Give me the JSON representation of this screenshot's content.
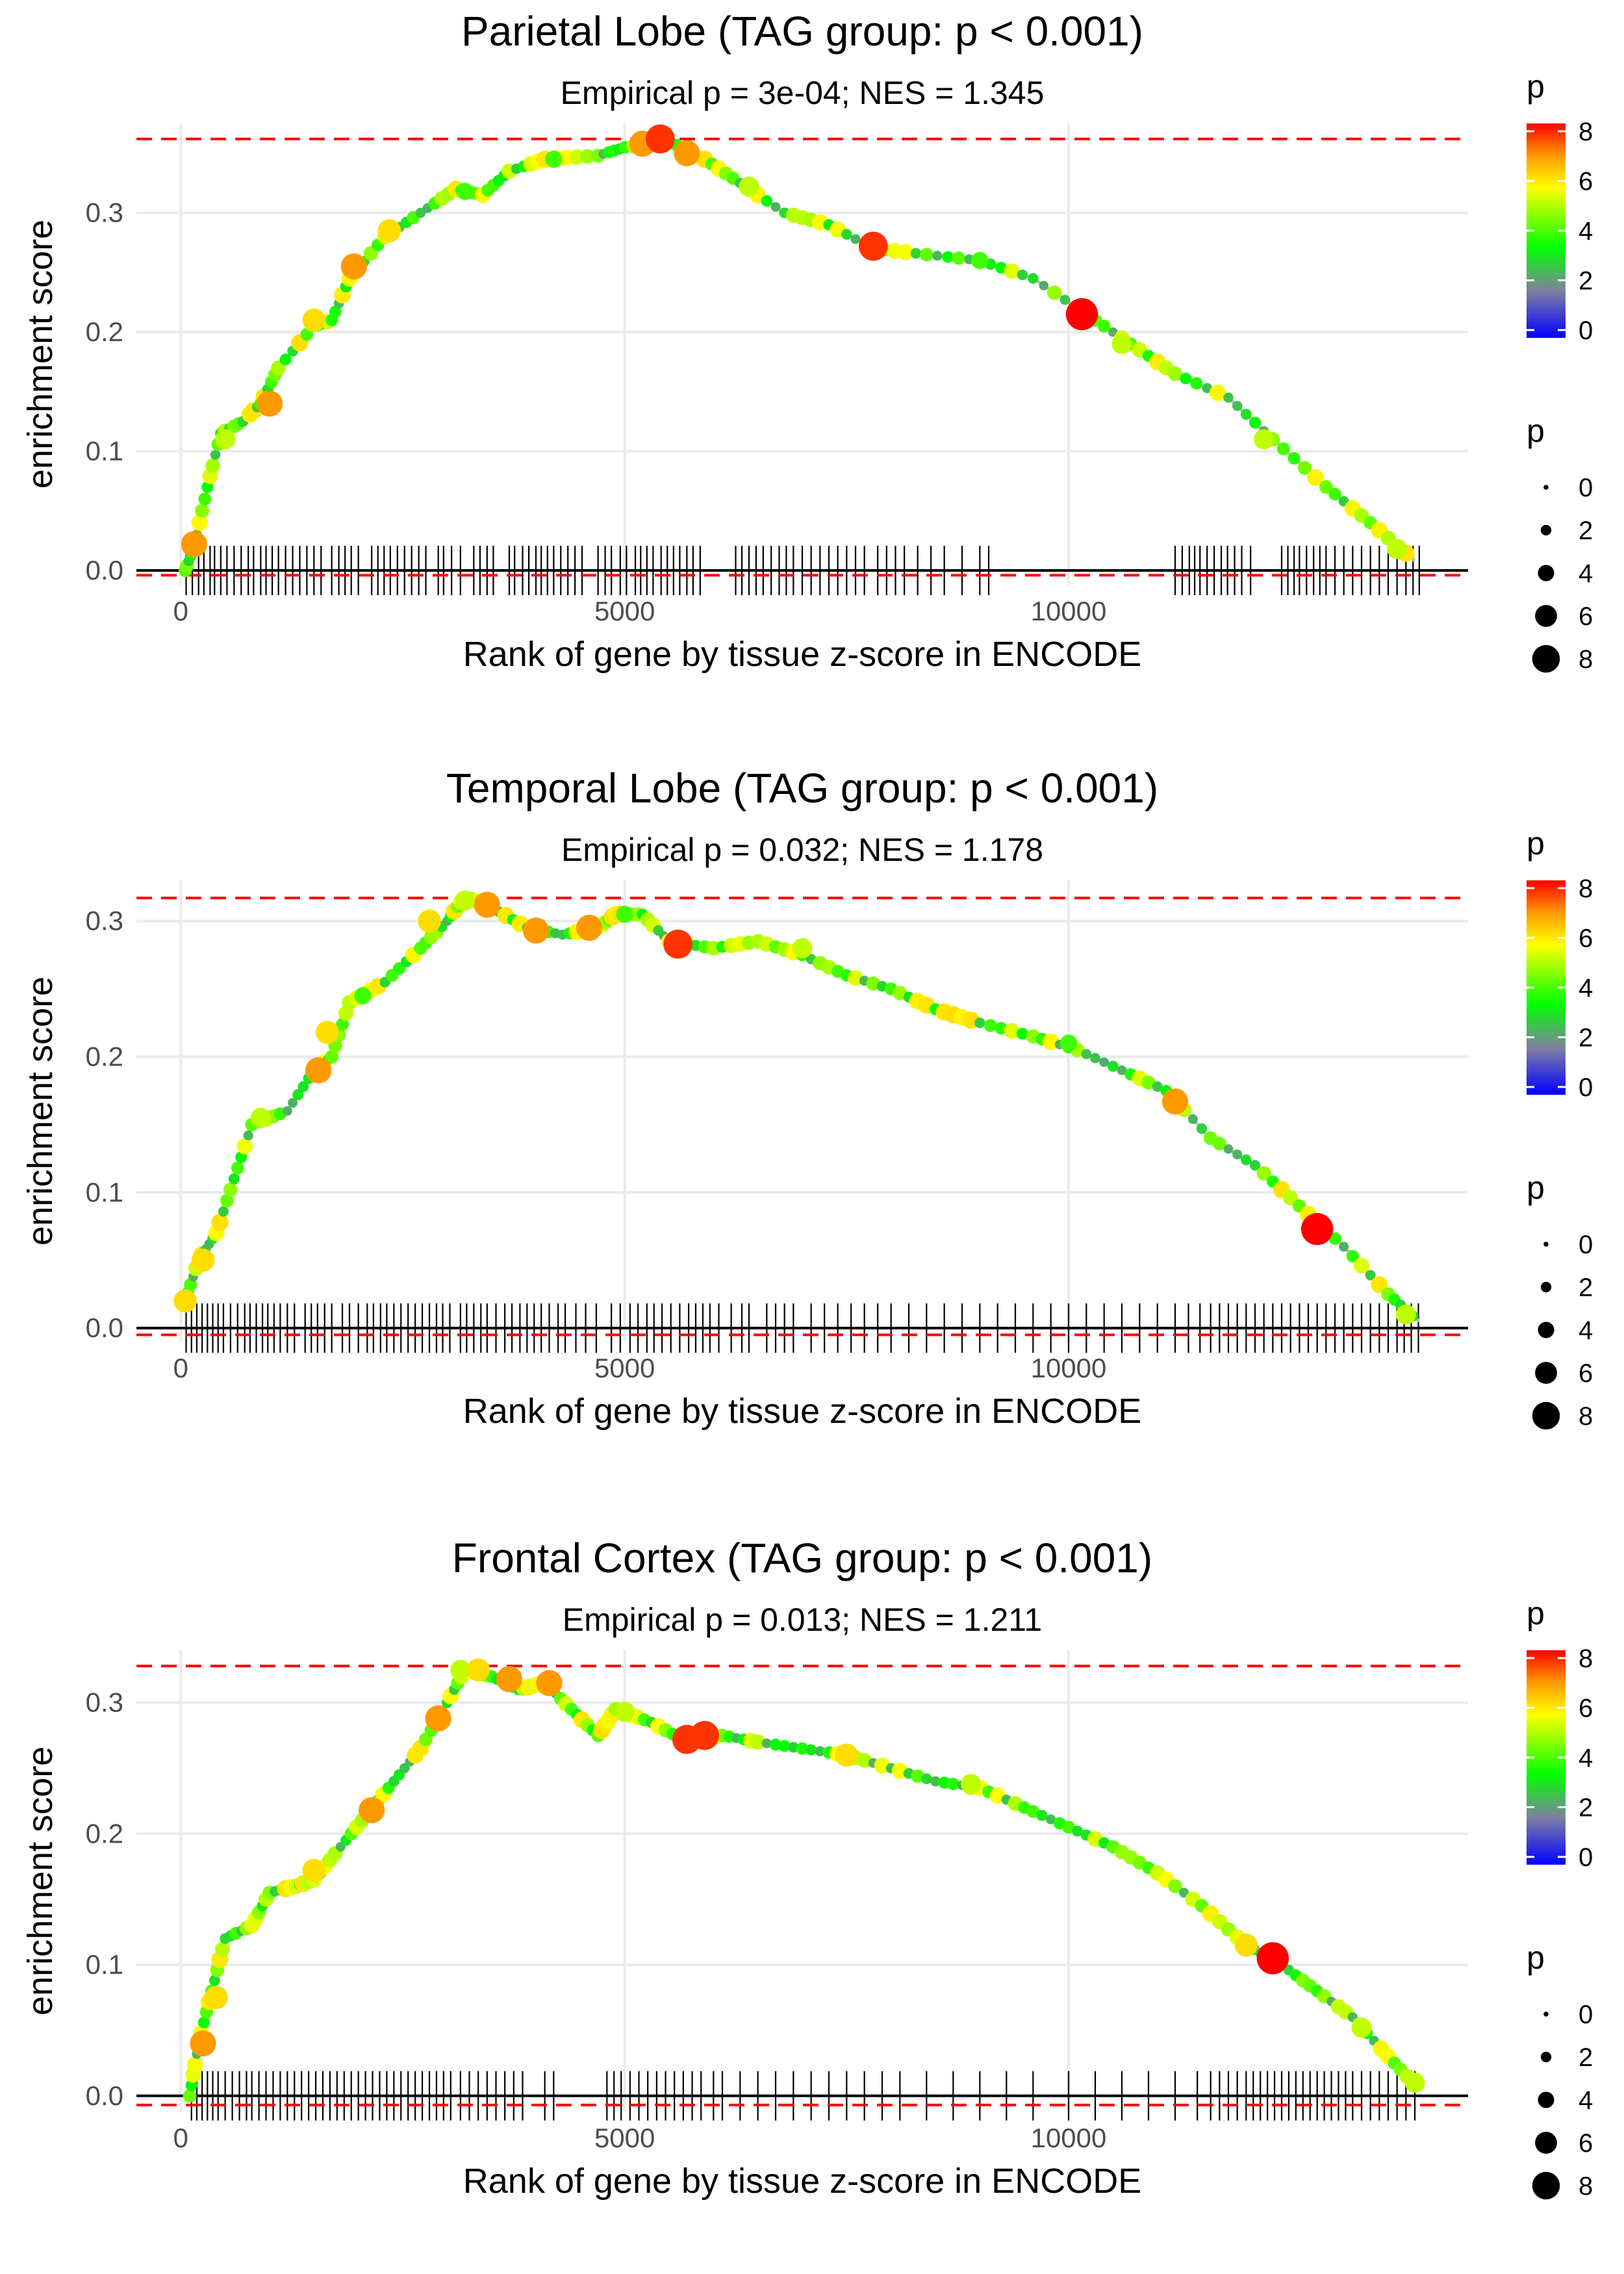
{
  "chart_data": [
    {
      "type": "line",
      "title": "Parietal Lobe (TAG group: p < 0.001)",
      "subtitle": "Empirical p = 3e-04; NES = 1.345",
      "xlabel": "Rank of gene by tissue z-score in ENCODE",
      "ylabel": "enrichment score",
      "xlim": [
        -500,
        14500
      ],
      "ylim": [
        -0.012,
        0.375
      ],
      "x_ticks": [
        0,
        5000,
        10000
      ],
      "x_tick_labels": [
        "0",
        "5000",
        "10000"
      ],
      "y_ticks": [
        0.0,
        0.1,
        0.2,
        0.3
      ],
      "y_tick_labels": [
        "0.0",
        "0.1",
        "0.2",
        "0.3"
      ],
      "max_es": 0.362,
      "min_es": -0.004,
      "curve": [
        [
          50,
          0
        ],
        [
          150,
          0.02
        ],
        [
          300,
          0.07
        ],
        [
          450,
          0.115
        ],
        [
          700,
          0.125
        ],
        [
          900,
          0.14
        ],
        [
          1100,
          0.17
        ],
        [
          1500,
          0.205
        ],
        [
          1700,
          0.21
        ],
        [
          1900,
          0.245
        ],
        [
          2300,
          0.28
        ],
        [
          2700,
          0.3
        ],
        [
          3100,
          0.32
        ],
        [
          3400,
          0.315
        ],
        [
          3700,
          0.335
        ],
        [
          4100,
          0.345
        ],
        [
          4700,
          0.348
        ],
        [
          5000,
          0.355
        ],
        [
          5500,
          0.36
        ],
        [
          5900,
          0.345
        ],
        [
          6300,
          0.325
        ],
        [
          6800,
          0.3
        ],
        [
          7300,
          0.29
        ],
        [
          7800,
          0.27
        ],
        [
          8400,
          0.265
        ],
        [
          9000,
          0.26
        ],
        [
          9600,
          0.245
        ],
        [
          10200,
          0.215
        ],
        [
          10700,
          0.19
        ],
        [
          11200,
          0.165
        ],
        [
          11800,
          0.145
        ],
        [
          12300,
          0.11
        ],
        [
          12900,
          0.07
        ],
        [
          13400,
          0.04
        ],
        [
          13900,
          0.008
        ]
      ],
      "markers": [
        {
          "x": 150,
          "y": 0.022,
          "p": 7
        },
        {
          "x": 500,
          "y": 0.11,
          "p": 5
        },
        {
          "x": 1000,
          "y": 0.14,
          "p": 7
        },
        {
          "x": 1500,
          "y": 0.21,
          "p": 6
        },
        {
          "x": 1950,
          "y": 0.255,
          "p": 7
        },
        {
          "x": 2350,
          "y": 0.285,
          "p": 6
        },
        {
          "x": 3200,
          "y": 0.318,
          "p": 4
        },
        {
          "x": 4200,
          "y": 0.345,
          "p": 4
        },
        {
          "x": 5200,
          "y": 0.358,
          "p": 7
        },
        {
          "x": 5400,
          "y": 0.362,
          "p": 8
        },
        {
          "x": 5700,
          "y": 0.35,
          "p": 7
        },
        {
          "x": 6400,
          "y": 0.322,
          "p": 5
        },
        {
          "x": 7800,
          "y": 0.272,
          "p": 8
        },
        {
          "x": 9000,
          "y": 0.26,
          "p": 4
        },
        {
          "x": 10150,
          "y": 0.215,
          "p": 9
        },
        {
          "x": 10600,
          "y": 0.19,
          "p": 5
        },
        {
          "x": 12200,
          "y": 0.11,
          "p": 5
        },
        {
          "x": 13700,
          "y": 0.018,
          "p": 5
        }
      ],
      "hits": [
        60,
        130,
        200,
        260,
        330,
        380,
        450,
        520,
        600,
        680,
        760,
        820,
        900,
        960,
        1030,
        1100,
        1180,
        1260,
        1340,
        1420,
        1500,
        1580,
        1700,
        1780,
        1850,
        1920,
        2000,
        2150,
        2220,
        2290,
        2360,
        2440,
        2520,
        2600,
        2680,
        2760,
        2900,
        2960,
        3050,
        3150,
        3300,
        3370,
        3450,
        3520,
        3700,
        3760,
        3850,
        3920,
        4000,
        4060,
        4130,
        4200,
        4280,
        4360,
        4440,
        4520,
        4700,
        4780,
        4850,
        4950,
        5020,
        5120,
        5180,
        5250,
        5320,
        5410,
        5480,
        5550,
        5620,
        5700,
        5770,
        5850,
        6250,
        6320,
        6400,
        6480,
        6560,
        6650,
        6740,
        6820,
        6900,
        7000,
        7100,
        7200,
        7300,
        7400,
        7500,
        7600,
        7700,
        7850,
        7950,
        8050,
        8150,
        8300,
        8450,
        8600,
        8800,
        9000,
        9100,
        11200,
        11280,
        11360,
        11420,
        11480,
        11560,
        11640,
        11720,
        11790,
        11870,
        11950,
        12050,
        12400,
        12470,
        12540,
        12600,
        12680,
        12760,
        12830,
        12900,
        13000,
        13100,
        13200,
        13300,
        13400,
        13500,
        13600,
        13700,
        13800,
        13880,
        13950
      ],
      "legend_color": {
        "title": "p",
        "labels": [
          "0",
          "2",
          "4",
          "6",
          "8"
        ]
      },
      "legend_size": {
        "title": "p",
        "labels": [
          "0",
          "2",
          "4",
          "6",
          "8"
        ]
      }
    },
    {
      "type": "line",
      "title": "Temporal Lobe (TAG group: p < 0.001)",
      "subtitle": "Empirical p = 0.032; NES = 1.178",
      "xlabel": "Rank of gene by tissue z-score in ENCODE",
      "ylabel": "enrichment score",
      "xlim": [
        -500,
        14500
      ],
      "ylim": [
        -0.01,
        0.33
      ],
      "x_ticks": [
        0,
        5000,
        10000
      ],
      "x_tick_labels": [
        "0",
        "5000",
        "10000"
      ],
      "y_ticks": [
        0.0,
        0.1,
        0.2,
        0.3
      ],
      "y_tick_labels": [
        "0.0",
        "0.1",
        "0.2",
        "0.3"
      ],
      "max_es": 0.317,
      "min_es": -0.005,
      "curve": [
        [
          50,
          0.02
        ],
        [
          200,
          0.05
        ],
        [
          400,
          0.07
        ],
        [
          600,
          0.11
        ],
        [
          800,
          0.15
        ],
        [
          1200,
          0.16
        ],
        [
          1500,
          0.19
        ],
        [
          1700,
          0.2
        ],
        [
          1900,
          0.24
        ],
        [
          2300,
          0.255
        ],
        [
          2700,
          0.28
        ],
        [
          3000,
          0.3
        ],
        [
          3200,
          0.318
        ],
        [
          3500,
          0.31
        ],
        [
          3900,
          0.295
        ],
        [
          4300,
          0.29
        ],
        [
          4700,
          0.295
        ],
        [
          4900,
          0.305
        ],
        [
          5200,
          0.305
        ],
        [
          5500,
          0.285
        ],
        [
          6000,
          0.28
        ],
        [
          6500,
          0.285
        ],
        [
          7000,
          0.275
        ],
        [
          7500,
          0.26
        ],
        [
          8000,
          0.25
        ],
        [
          8500,
          0.235
        ],
        [
          9000,
          0.225
        ],
        [
          9600,
          0.215
        ],
        [
          10100,
          0.205
        ],
        [
          10600,
          0.19
        ],
        [
          11100,
          0.175
        ],
        [
          11600,
          0.14
        ],
        [
          12100,
          0.12
        ],
        [
          12600,
          0.09
        ],
        [
          13100,
          0.06
        ],
        [
          13600,
          0.025
        ],
        [
          13950,
          0.005
        ]
      ],
      "markers": [
        {
          "x": 50,
          "y": 0.02,
          "p": 6
        },
        {
          "x": 250,
          "y": 0.05,
          "p": 6
        },
        {
          "x": 900,
          "y": 0.155,
          "p": 5
        },
        {
          "x": 1550,
          "y": 0.19,
          "p": 7
        },
        {
          "x": 1650,
          "y": 0.218,
          "p": 6
        },
        {
          "x": 2050,
          "y": 0.245,
          "p": 4
        },
        {
          "x": 2800,
          "y": 0.3,
          "p": 6
        },
        {
          "x": 3200,
          "y": 0.315,
          "p": 5
        },
        {
          "x": 3450,
          "y": 0.312,
          "p": 7
        },
        {
          "x": 4000,
          "y": 0.293,
          "p": 7
        },
        {
          "x": 4600,
          "y": 0.295,
          "p": 7
        },
        {
          "x": 5000,
          "y": 0.305,
          "p": 4
        },
        {
          "x": 5600,
          "y": 0.283,
          "p": 8
        },
        {
          "x": 7000,
          "y": 0.28,
          "p": 5
        },
        {
          "x": 10000,
          "y": 0.21,
          "p": 4
        },
        {
          "x": 11200,
          "y": 0.167,
          "p": 7
        },
        {
          "x": 12800,
          "y": 0.073,
          "p": 9
        },
        {
          "x": 13800,
          "y": 0.01,
          "p": 5
        }
      ],
      "hits": [
        60,
        120,
        180,
        240,
        300,
        360,
        420,
        480,
        560,
        640,
        720,
        780,
        850,
        920,
        980,
        1050,
        1120,
        1200,
        1280,
        1400,
        1470,
        1540,
        1620,
        1700,
        1820,
        1900,
        2000,
        2100,
        2170,
        2250,
        2320,
        2400,
        2480,
        2560,
        2640,
        2720,
        2800,
        2880,
        2950,
        3030,
        3150,
        3220,
        3300,
        3380,
        3450,
        3550,
        3650,
        3730,
        3820,
        3900,
        3980,
        4060,
        4150,
        4250,
        4330,
        4450,
        4560,
        4680,
        4850,
        4950,
        5060,
        5150,
        5250,
        5330,
        5420,
        5520,
        5620,
        5720,
        5800,
        5880,
        5960,
        6060,
        6200,
        6320,
        6400,
        6600,
        6700,
        6800,
        6900,
        7100,
        7250,
        7400,
        7550,
        7700,
        7850,
        8000,
        8200,
        8400,
        8600,
        8800,
        9000,
        9200,
        9400,
        9600,
        9800,
        10000,
        10200,
        10400,
        10600,
        10800,
        11000,
        11200,
        11350,
        11480,
        11600,
        11700,
        11800,
        11900,
        12000,
        12100,
        12200,
        12300,
        12400,
        12500,
        12600,
        12700,
        12800,
        12900,
        13000,
        13100,
        13200,
        13300,
        13400,
        13500,
        13600,
        13700,
        13780,
        13860,
        13940
      ],
      "legend_color": {
        "title": "p",
        "labels": [
          "0",
          "2",
          "4",
          "6",
          "8"
        ]
      },
      "legend_size": {
        "title": "p",
        "labels": [
          "0",
          "2",
          "4",
          "6",
          "8"
        ]
      }
    },
    {
      "type": "line",
      "title": "Frontal Cortex (TAG group: p < 0.001)",
      "subtitle": "Empirical p = 0.013; NES = 1.211",
      "xlabel": "Rank of gene by tissue z-score in ENCODE",
      "ylabel": "enrichment score",
      "xlim": [
        -500,
        14500
      ],
      "ylim": [
        -0.012,
        0.34
      ],
      "x_ticks": [
        0,
        5000,
        10000
      ],
      "x_tick_labels": [
        "0",
        "5000",
        "10000"
      ],
      "y_ticks": [
        0.0,
        0.1,
        0.2,
        0.3
      ],
      "y_tick_labels": [
        "0.0",
        "0.1",
        "0.2",
        "0.3"
      ],
      "max_es": 0.328,
      "min_es": -0.007,
      "curve": [
        [
          100,
          0
        ],
        [
          200,
          0.04
        ],
        [
          350,
          0.08
        ],
        [
          500,
          0.12
        ],
        [
          800,
          0.13
        ],
        [
          1000,
          0.155
        ],
        [
          1300,
          0.16
        ],
        [
          1500,
          0.165
        ],
        [
          1800,
          0.19
        ],
        [
          2100,
          0.215
        ],
        [
          2400,
          0.24
        ],
        [
          2700,
          0.265
        ],
        [
          3000,
          0.3
        ],
        [
          3200,
          0.325
        ],
        [
          3500,
          0.32
        ],
        [
          3800,
          0.31
        ],
        [
          4100,
          0.315
        ],
        [
          4400,
          0.295
        ],
        [
          4700,
          0.275
        ],
        [
          4900,
          0.295
        ],
        [
          5300,
          0.285
        ],
        [
          5700,
          0.27
        ],
        [
          6100,
          0.275
        ],
        [
          6500,
          0.27
        ],
        [
          7000,
          0.265
        ],
        [
          7500,
          0.26
        ],
        [
          8000,
          0.25
        ],
        [
          8500,
          0.24
        ],
        [
          9000,
          0.235
        ],
        [
          9500,
          0.22
        ],
        [
          10000,
          0.205
        ],
        [
          10500,
          0.19
        ],
        [
          11000,
          0.17
        ],
        [
          11500,
          0.145
        ],
        [
          12000,
          0.115
        ],
        [
          12400,
          0.1
        ],
        [
          12800,
          0.08
        ],
        [
          13200,
          0.06
        ],
        [
          13600,
          0.03
        ],
        [
          13950,
          0.005
        ]
      ],
      "markers": [
        {
          "x": 250,
          "y": 0.04,
          "p": 7
        },
        {
          "x": 400,
          "y": 0.075,
          "p": 6
        },
        {
          "x": 1500,
          "y": 0.172,
          "p": 6
        },
        {
          "x": 2150,
          "y": 0.218,
          "p": 7
        },
        {
          "x": 2900,
          "y": 0.288,
          "p": 7
        },
        {
          "x": 3150,
          "y": 0.325,
          "p": 5
        },
        {
          "x": 3350,
          "y": 0.325,
          "p": 6
        },
        {
          "x": 3700,
          "y": 0.318,
          "p": 7
        },
        {
          "x": 4150,
          "y": 0.315,
          "p": 7
        },
        {
          "x": 5000,
          "y": 0.293,
          "p": 5
        },
        {
          "x": 5700,
          "y": 0.272,
          "p": 8
        },
        {
          "x": 5900,
          "y": 0.275,
          "p": 8
        },
        {
          "x": 7500,
          "y": 0.26,
          "p": 6
        },
        {
          "x": 8900,
          "y": 0.238,
          "p": 5
        },
        {
          "x": 12000,
          "y": 0.115,
          "p": 6
        },
        {
          "x": 12300,
          "y": 0.105,
          "p": 9
        },
        {
          "x": 13300,
          "y": 0.052,
          "p": 5
        },
        {
          "x": 13900,
          "y": 0.01,
          "p": 5
        }
      ],
      "hits": [
        120,
        180,
        240,
        300,
        360,
        420,
        500,
        580,
        660,
        740,
        800,
        880,
        960,
        1040,
        1120,
        1200,
        1280,
        1360,
        1440,
        1520,
        1600,
        1680,
        1760,
        1840,
        1920,
        2000,
        2080,
        2160,
        2240,
        2320,
        2400,
        2480,
        2560,
        2640,
        2720,
        2800,
        2880,
        2960,
        3040,
        3150,
        3250,
        3350,
        3450,
        3550,
        3650,
        3750,
        3850,
        4100,
        4200,
        4800,
        4880,
        4960,
        5060,
        5160,
        5260,
        5360,
        5460,
        5560,
        5660,
        5760,
        5860,
        6000,
        6100,
        6300,
        6500,
        6700,
        6900,
        7100,
        7300,
        7500,
        7700,
        7900,
        8100,
        8400,
        8700,
        9000,
        9300,
        9600,
        10000,
        10300,
        10600,
        10900,
        11200,
        11450,
        11600,
        11700,
        11800,
        11900,
        12000,
        12080,
        12160,
        12240,
        12320,
        12400,
        12480,
        12560,
        12640,
        12720,
        12800,
        12880,
        12960,
        13040,
        13120,
        13200,
        13300,
        13400,
        13500,
        13600,
        13700,
        13800,
        13900
      ],
      "legend_color": {
        "title": "p",
        "labels": [
          "0",
          "2",
          "4",
          "6",
          "8"
        ]
      },
      "legend_size": {
        "title": "p",
        "labels": [
          "0",
          "2",
          "4",
          "6",
          "8"
        ]
      }
    }
  ]
}
